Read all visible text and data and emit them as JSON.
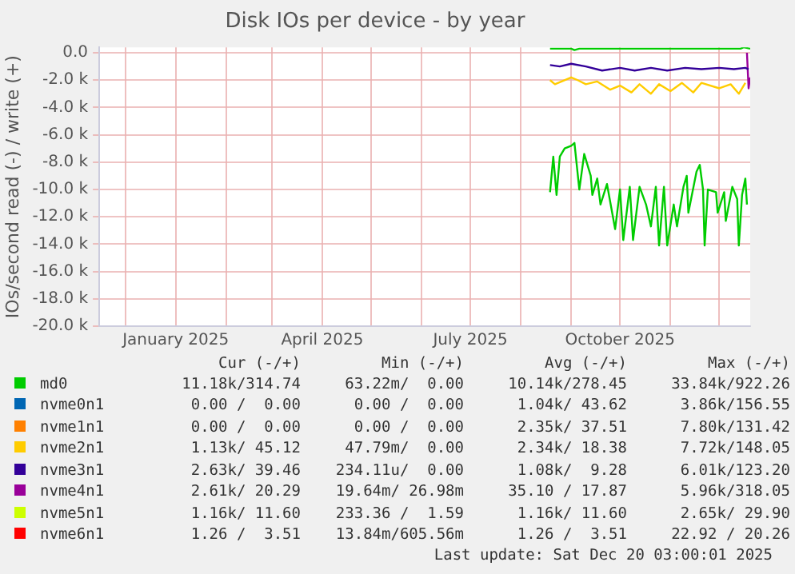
{
  "chart_data": {
    "type": "line",
    "title": "Disk IOs per device - by year",
    "ylabel": "IOs/second read (-) / write (+)",
    "xlim": [
      "2024-11-15",
      "2025-12-20"
    ],
    "xticks": [
      {
        "value": "2024-12-01",
        "label": null
      },
      {
        "value": "2025-01-01",
        "label": "January 2025"
      },
      {
        "value": "2025-02-01",
        "label": null
      },
      {
        "value": "2025-03-01",
        "label": null
      },
      {
        "value": "2025-04-01",
        "label": "April 2025"
      },
      {
        "value": "2025-05-01",
        "label": null
      },
      {
        "value": "2025-06-01",
        "label": null
      },
      {
        "value": "2025-07-01",
        "label": "July 2025"
      },
      {
        "value": "2025-08-01",
        "label": null
      },
      {
        "value": "2025-09-01",
        "label": null
      },
      {
        "value": "2025-10-01",
        "label": "October 2025"
      },
      {
        "value": "2025-11-01",
        "label": null
      },
      {
        "value": "2025-12-01",
        "label": null
      }
    ],
    "ylim": [
      -20000,
      400
    ],
    "yticks": [
      {
        "value": 0,
        "label": "0.0"
      },
      {
        "value": -2000,
        "label": "-2.0 k"
      },
      {
        "value": -4000,
        "label": "-4.0 k"
      },
      {
        "value": -6000,
        "label": "-6.0 k"
      },
      {
        "value": -8000,
        "label": "-8.0 k"
      },
      {
        "value": -10000,
        "label": "-10.0 k"
      },
      {
        "value": -12000,
        "label": "-12.0 k"
      },
      {
        "value": -14000,
        "label": "-14.0 k"
      },
      {
        "value": -16000,
        "label": "-16.0 k"
      },
      {
        "value": -18000,
        "label": "-18.0 k"
      },
      {
        "value": -20000,
        "label": "-20.0 k"
      }
    ],
    "grid": true,
    "legend": "bottom",
    "marker": "none",
    "line_style": "solid",
    "series": [
      {
        "name": "md0",
        "color": "#00cc00",
        "x": [
          "2025-08-19",
          "2025-08-21",
          "2025-08-23",
          "2025-08-25",
          "2025-08-28",
          "2025-09-01",
          "2025-09-03",
          "2025-09-06",
          "2025-09-09",
          "2025-09-13",
          "2025-09-14",
          "2025-09-17",
          "2025-09-19",
          "2025-09-23",
          "2025-09-28",
          "2025-10-01",
          "2025-10-03",
          "2025-10-07",
          "2025-10-09",
          "2025-10-13",
          "2025-10-17",
          "2025-10-20",
          "2025-10-23",
          "2025-10-25",
          "2025-10-28",
          "2025-10-30",
          "2025-11-03",
          "2025-11-05",
          "2025-11-09",
          "2025-11-11",
          "2025-11-12",
          "2025-11-17",
          "2025-11-19",
          "2025-11-21",
          "2025-11-22",
          "2025-11-24",
          "2025-11-29",
          "2025-11-30",
          "2025-12-04",
          "2025-12-05",
          "2025-12-09",
          "2025-12-12",
          "2025-12-13",
          "2025-12-15",
          "2025-12-17",
          "2025-12-18"
        ],
        "values": [
          -10200,
          -7600,
          -10400,
          -7600,
          -7000,
          -6800,
          -6600,
          -10000,
          -7400,
          -9000,
          -10400,
          -9200,
          -11100,
          -9600,
          -12900,
          -10000,
          -13700,
          -9800,
          -13700,
          -9800,
          -11100,
          -12700,
          -9800,
          -14100,
          -9800,
          -14100,
          -11100,
          -12700,
          -9800,
          -9000,
          -11700,
          -8700,
          -8200,
          -10000,
          -14100,
          -10000,
          -10200,
          -11700,
          -10200,
          -12300,
          -9800,
          -10700,
          -14100,
          -10400,
          -9200,
          -11100
        ]
      },
      {
        "color": "#00cc00",
        "x": [
          "2025-08-19",
          "2025-09-01",
          "2025-09-03",
          "2025-09-06",
          "2025-10-01",
          "2025-11-01",
          "2025-12-01",
          "2025-12-14",
          "2025-12-16",
          "2025-12-20"
        ],
        "values": [
          300,
          300,
          200,
          300,
          300,
          300,
          300,
          300,
          400,
          300
        ]
      },
      {
        "name": "nvme0n1",
        "color": "#0066b3"
      },
      {
        "name": "nvme1n1",
        "color": "#ff8000"
      },
      {
        "name": "nvme2n1",
        "color": "#ffcc00",
        "x": [
          "2025-08-19",
          "2025-08-22",
          "2025-09-01",
          "2025-09-05",
          "2025-09-10",
          "2025-09-17",
          "2025-09-25",
          "2025-10-01",
          "2025-10-08",
          "2025-10-13",
          "2025-10-20",
          "2025-10-25",
          "2025-11-01",
          "2025-11-08",
          "2025-11-15",
          "2025-11-20",
          "2025-12-01",
          "2025-12-08",
          "2025-12-13",
          "2025-12-17"
        ],
        "values": [
          -2000,
          -2300,
          -1800,
          -2000,
          -2300,
          -2100,
          -2700,
          -2400,
          -2900,
          -2300,
          -3000,
          -2300,
          -2800,
          -2200,
          -2900,
          -2200,
          -2600,
          -2300,
          -3000,
          -2200
        ]
      },
      {
        "name": "nvme3n1",
        "color": "#330099",
        "x": [
          "2025-08-19",
          "2025-08-25",
          "2025-09-01",
          "2025-09-10",
          "2025-09-20",
          "2025-10-01",
          "2025-10-10",
          "2025-10-20",
          "2025-10-30",
          "2025-11-10",
          "2025-11-20",
          "2025-12-01",
          "2025-12-10",
          "2025-12-17",
          "2025-12-19"
        ],
        "values": [
          -900,
          -1000,
          -800,
          -1000,
          -1300,
          -1100,
          -1300,
          -1100,
          -1300,
          -1100,
          -1200,
          -1100,
          -1200,
          -1100,
          -1200
        ]
      },
      {
        "name": "nvme4n1",
        "color": "#990099",
        "x": [
          "2025-12-18",
          "2025-12-19",
          "2025-12-20"
        ],
        "values": [
          0,
          -2600,
          -1800
        ]
      },
      {
        "name": "nvme5n1",
        "color": "#ccff00"
      },
      {
        "name": "nvme6n1",
        "color": "#ff0000"
      }
    ],
    "annotations": [
      "Cur (-/+)",
      "Min (-/+)",
      "Avg (-/+)",
      "Max (-/+)",
      "11.18k/314.74",
      "63.22m/  0.00",
      "10.14k/278.45",
      "33.84k/922.26",
      "0.00 /  0.00",
      "0.00 /  0.00",
      "1.04k/ 43.62",
      "3.86k/156.55",
      "0.00 /  0.00",
      "0.00 /  0.00",
      "2.35k/ 37.51",
      "7.80k/131.42",
      "1.13k/ 45.12",
      "47.79m/  0.00",
      "2.34k/ 18.38",
      "7.72k/148.05",
      "2.63k/ 39.46",
      "234.11u/  0.00",
      "1.08k/  9.28",
      "6.01k/123.20",
      "2.61k/ 20.29",
      "19.64m/ 26.98m",
      "35.10 / 17.87",
      "5.96k/318.05",
      "1.16k/ 11.60",
      "233.36 /  1.59",
      "1.16k/ 11.60",
      "2.65k/ 29.90",
      "1.26 /  3.51",
      "13.84m/605.56m",
      "1.26 /  3.51",
      "22.92 / 20.26",
      "Last update: Sat Dec 20 03:00:01 2025"
    ]
  }
}
